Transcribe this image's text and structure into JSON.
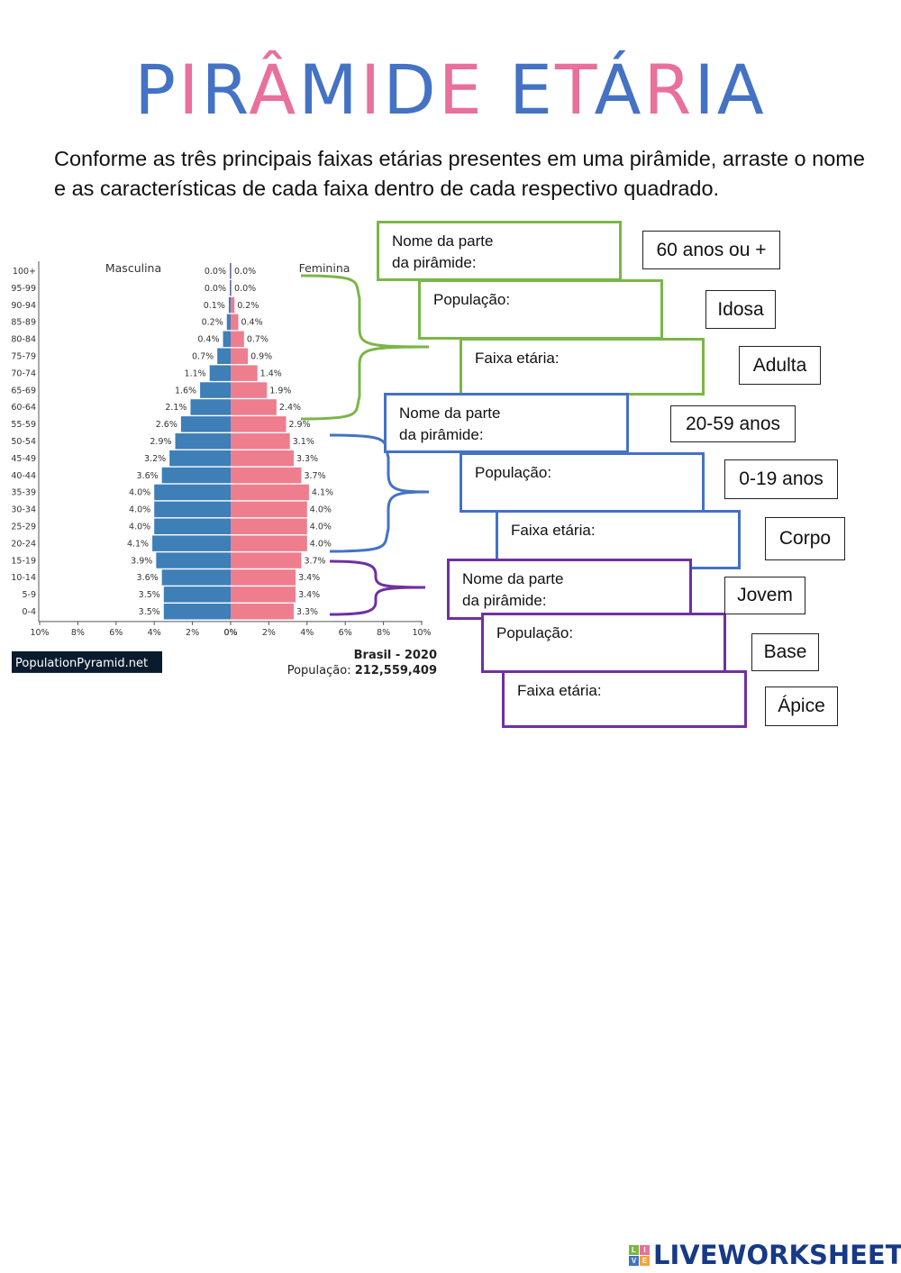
{
  "title": "PIRÂMIDE ETÁRIA",
  "instructions": "Conforme as três principais faixas etárias presentes em uma pirâmide, arraste o nome e as características de cada faixa dentro de cada respectivo quadrado.",
  "chart_data": {
    "type": "bar",
    "subtype": "population-pyramid",
    "title": "Brasil - 2020",
    "population_label": "População:",
    "population_value": "212,559,409",
    "source": "PopulationPyramid.net",
    "left_label": "Masculina",
    "right_label": "Feminina",
    "xlim": [
      -10,
      10
    ],
    "x_ticks": [
      "10%",
      "8%",
      "6%",
      "4%",
      "2%",
      "0%",
      "0%",
      "2%",
      "4%",
      "6%",
      "8%",
      "10%"
    ],
    "categories": [
      "100+",
      "95-99",
      "90-94",
      "85-89",
      "80-84",
      "75-79",
      "70-74",
      "65-69",
      "60-64",
      "55-59",
      "50-54",
      "45-49",
      "40-44",
      "35-39",
      "30-34",
      "25-29",
      "20-24",
      "15-19",
      "10-14",
      "5-9",
      "0-4"
    ],
    "series": [
      {
        "name": "Masculina",
        "color": "#3f7fb8",
        "values": [
          0.0,
          0.0,
          0.1,
          0.2,
          0.4,
          0.7,
          1.1,
          1.6,
          2.1,
          2.6,
          2.9,
          3.2,
          3.6,
          4.0,
          4.0,
          4.0,
          4.1,
          3.9,
          3.6,
          3.5,
          3.5
        ]
      },
      {
        "name": "Feminina",
        "color": "#ee7d8e",
        "values": [
          0.0,
          0.0,
          0.2,
          0.4,
          0.7,
          0.9,
          1.4,
          1.9,
          2.4,
          2.9,
          3.1,
          3.3,
          3.7,
          4.1,
          4.0,
          4.0,
          4.0,
          3.7,
          3.4,
          3.4,
          3.3
        ]
      }
    ],
    "value_labels_male": [
      "0.0%",
      "0.0%",
      "0.1%",
      "0.2%",
      "0.4%",
      "0.7%",
      "1.1%",
      "1.6%",
      "2.1%",
      "2.6%",
      "2.9%",
      "3.2%",
      "3.6%",
      "4.0%",
      "4.0%",
      "4.0%",
      "4.1%",
      "3.9%",
      "3.6%",
      "3.5%",
      "3.5%"
    ],
    "value_labels_female": [
      "0.0%",
      "0.0%",
      "0.2%",
      "0.4%",
      "0.7%",
      "0.9%",
      "1.4%",
      "1.9%",
      "2.4%",
      "2.9%",
      "3.1%",
      "3.3%",
      "3.7%",
      "4.1%",
      "4.0%",
      "4.0%",
      "4.0%",
      "3.7%",
      "3.4%",
      "3.4%",
      "3.3%"
    ]
  },
  "groups": [
    {
      "color": "#7ab648",
      "name_label": "Nome da parte\nda pirâmide:",
      "population_label": "População:",
      "age_label": "Faixa etária:"
    },
    {
      "color": "#4472c4",
      "name_label": "Nome da parte\nda pirâmide:",
      "population_label": "População:",
      "age_label": "Faixa etária:"
    },
    {
      "color": "#7030a0",
      "name_label": "Nome da parte\nda pirâmide:",
      "population_label": "População:",
      "age_label": "Faixa etária:"
    }
  ],
  "options": [
    "60 anos ou +",
    "Idosa",
    "Adulta",
    "20-59 anos",
    "0-19 anos",
    "Corpo",
    "Jovem",
    "Base",
    "Ápice"
  ],
  "footer": {
    "brand": "LIVEWORKSHEETS",
    "logo_letters": [
      "L",
      "I",
      "V",
      "E"
    ]
  }
}
